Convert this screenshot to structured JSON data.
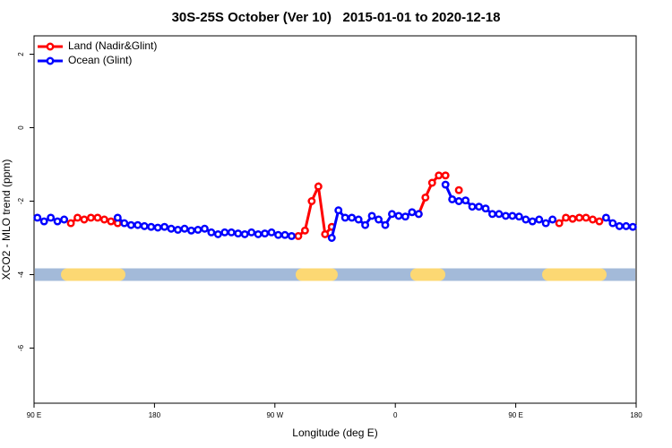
{
  "chart_data": {
    "type": "line",
    "title": "30S-25S October (Ver 10)   2015-01-01 to 2020-12-18",
    "x_label": "Longitude (deg E)",
    "y_label": "XCO2 - MLO trend (ppm)",
    "xlim": [
      90,
      540
    ],
    "ylim": [
      -7.5,
      2.5
    ],
    "xticks": [
      {
        "value": 90,
        "label": "90 E"
      },
      180,
      {
        "value": 270,
        "label": "90 W"
      },
      {
        "value": 360,
        "label": "0"
      },
      {
        "value": 450,
        "label": "90 E"
      },
      {
        "value": 540,
        "label": "180"
      }
    ],
    "yticks": [
      -6,
      -4,
      -2,
      0,
      2
    ],
    "legend": "top-left",
    "x": [
      92.5,
      97.5,
      102.5,
      107.5,
      112.5,
      117.5,
      122.5,
      127.5,
      132.5,
      137.5,
      142.5,
      147.5,
      152.5,
      157.5,
      162.5,
      167.5,
      172.5,
      177.5,
      182.5,
      187.5,
      192.5,
      197.5,
      202.5,
      207.5,
      212.5,
      217.5,
      222.5,
      227.5,
      232.5,
      237.5,
      242.5,
      247.5,
      252.5,
      257.5,
      262.5,
      267.5,
      272.5,
      277.5,
      282.5,
      287.5,
      292.5,
      297.5,
      302.5,
      307.5,
      312.5,
      317.5,
      322.5,
      327.5,
      332.5,
      337.5,
      342.5,
      347.5,
      352.5,
      357.5,
      362.5,
      367.5,
      372.5,
      377.5,
      382.5,
      387.5,
      392.5,
      397.5,
      402.5,
      407.5,
      412.5,
      417.5,
      422.5,
      427.5,
      432.5,
      437.5,
      442.5,
      447.5,
      452.5,
      457.5,
      462.5,
      467.5,
      472.5,
      477.5,
      482.5,
      487.5,
      492.5,
      497.5,
      502.5,
      507.5,
      512.5,
      517.5,
      522.5,
      527.5,
      532.5,
      537.5
    ],
    "series": [
      {
        "name": "Land (Nadir&Glint)",
        "color": "#ff0000",
        "values": [
          null,
          null,
          null,
          null,
          null,
          -2.6,
          -2.45,
          -2.5,
          -2.45,
          -2.45,
          -2.5,
          -2.55,
          -2.6,
          null,
          null,
          null,
          null,
          null,
          null,
          null,
          null,
          null,
          null,
          null,
          null,
          null,
          null,
          null,
          null,
          null,
          null,
          null,
          null,
          null,
          null,
          null,
          null,
          null,
          null,
          -2.95,
          -2.8,
          -2.0,
          -1.6,
          -2.9,
          -2.7,
          null,
          null,
          null,
          null,
          null,
          null,
          null,
          null,
          null,
          null,
          null,
          null,
          -2.35,
          -1.9,
          -1.5,
          -1.3,
          -1.3,
          null,
          -1.7,
          null,
          null,
          null,
          null,
          null,
          null,
          null,
          null,
          null,
          null,
          null,
          null,
          null,
          null,
          -2.6,
          -2.45,
          -2.48,
          -2.45,
          -2.45,
          -2.5,
          -2.55,
          null,
          null,
          null,
          null,
          null
        ]
      },
      {
        "name": "Ocean (Glint)",
        "color": "#0000ff",
        "values": [
          -2.45,
          -2.55,
          -2.45,
          -2.55,
          -2.5,
          null,
          null,
          null,
          null,
          null,
          null,
          null,
          -2.45,
          -2.6,
          -2.65,
          -2.65,
          -2.68,
          -2.7,
          -2.72,
          -2.7,
          -2.75,
          -2.78,
          -2.75,
          -2.8,
          -2.78,
          -2.75,
          -2.85,
          -2.9,
          -2.85,
          -2.85,
          -2.88,
          -2.9,
          -2.85,
          -2.9,
          -2.88,
          -2.85,
          -2.92,
          -2.92,
          -2.95,
          null,
          null,
          null,
          null,
          null,
          -3.0,
          -2.25,
          -2.45,
          -2.45,
          -2.5,
          -2.65,
          -2.4,
          -2.5,
          -2.65,
          -2.35,
          -2.4,
          -2.42,
          -2.3,
          -2.35,
          null,
          null,
          null,
          -1.55,
          -1.95,
          -2.0,
          -1.98,
          -2.15,
          -2.15,
          -2.2,
          -2.35,
          -2.35,
          -2.4,
          -2.4,
          -2.42,
          -2.5,
          -2.55,
          -2.5,
          -2.6,
          -2.5,
          null,
          null,
          null,
          null,
          null,
          null,
          null,
          -2.45,
          -2.6,
          -2.68,
          -2.68,
          -2.7
        ]
      }
    ],
    "surface_strip": {
      "y": -4,
      "ocean_color": "#a3bad9",
      "land_color": "#fcd873",
      "land": [
        [
          114.8,
          153.6
        ],
        [
          290.2,
          312.3
        ],
        [
          375.9,
          392.7
        ],
        [
          474.4,
          513.2
        ]
      ]
    }
  }
}
